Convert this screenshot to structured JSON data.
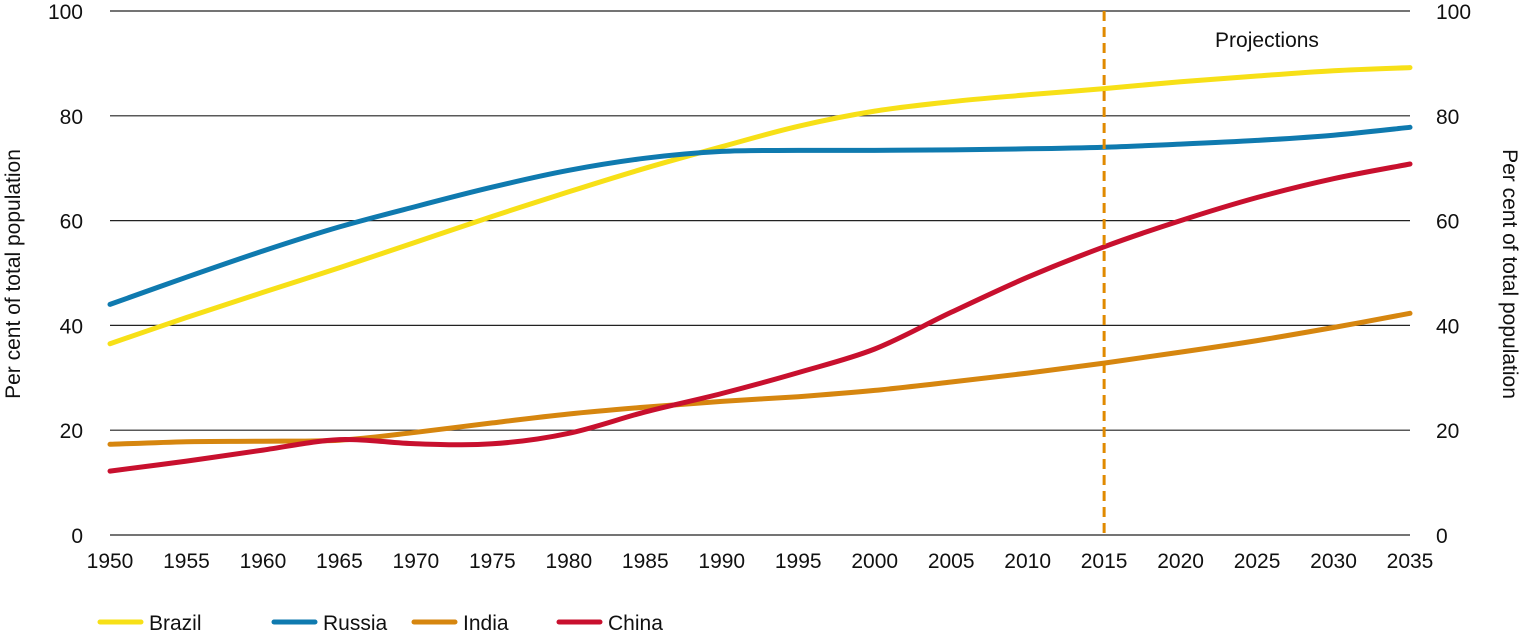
{
  "chart_data": {
    "type": "line",
    "title": "",
    "xlabel": "",
    "ylabel": "Per cent of total population",
    "ylabel_right": "Per cent of total population",
    "xlim": [
      1950,
      2035
    ],
    "ylim": [
      0,
      100
    ],
    "x_ticks": [
      1950,
      1955,
      1960,
      1965,
      1970,
      1975,
      1980,
      1985,
      1990,
      1995,
      2000,
      2005,
      2010,
      2015,
      2020,
      2025,
      2030,
      2035
    ],
    "y_ticks": [
      0,
      20,
      40,
      60,
      80,
      100
    ],
    "grid": "horizontal",
    "legend_position": "bottom-left",
    "annotation": {
      "text": "Projections",
      "x": 2015,
      "color": "#E08A00"
    },
    "series": [
      {
        "name": "Brazil",
        "color": "#F7E017",
        "x": [
          1950,
          1955,
          1960,
          1965,
          1970,
          1975,
          1980,
          1985,
          1990,
          1995,
          2000,
          2005,
          2010,
          2015,
          2020,
          2025,
          2030,
          2035
        ],
        "values": [
          36.5,
          41.5,
          46.3,
          51,
          55.9,
          60.8,
          65.5,
          70,
          74.1,
          78,
          80.9,
          82.7,
          84,
          85.2,
          86.5,
          87.6,
          88.6,
          89.2
        ]
      },
      {
        "name": "Russia",
        "color": "#0F7AAF",
        "x": [
          1950,
          1955,
          1960,
          1965,
          1970,
          1975,
          1980,
          1985,
          1990,
          1995,
          2000,
          2005,
          2010,
          2015,
          2020,
          2025,
          2030,
          2035
        ],
        "values": [
          44,
          49.2,
          54.2,
          58.8,
          62.7,
          66.4,
          69.6,
          71.9,
          73.2,
          73.4,
          73.4,
          73.5,
          73.7,
          74,
          74.6,
          75.3,
          76.3,
          77.8
        ]
      },
      {
        "name": "India",
        "color": "#D6860F",
        "x": [
          1950,
          1955,
          1960,
          1965,
          1970,
          1975,
          1980,
          1985,
          1990,
          1995,
          2000,
          2005,
          2010,
          2015,
          2020,
          2025,
          2030,
          2035
        ],
        "values": [
          17.3,
          17.8,
          17.9,
          18.1,
          19.6,
          21.4,
          23.1,
          24.4,
          25.5,
          26.4,
          27.6,
          29.2,
          30.9,
          32.8,
          34.9,
          37.1,
          39.6,
          42.3
        ]
      },
      {
        "name": "China",
        "color": "#C8102E",
        "x": [
          1950,
          1955,
          1960,
          1965,
          1970,
          1975,
          1980,
          1985,
          1990,
          1995,
          2000,
          2005,
          2010,
          2015,
          2020,
          2025,
          2030,
          2035
        ],
        "values": [
          12.2,
          14.1,
          16.2,
          18.2,
          17.4,
          17.4,
          19.4,
          23.5,
          27,
          31,
          35.5,
          42.5,
          49.2,
          55,
          60,
          64.4,
          68,
          70.8
        ]
      }
    ]
  }
}
